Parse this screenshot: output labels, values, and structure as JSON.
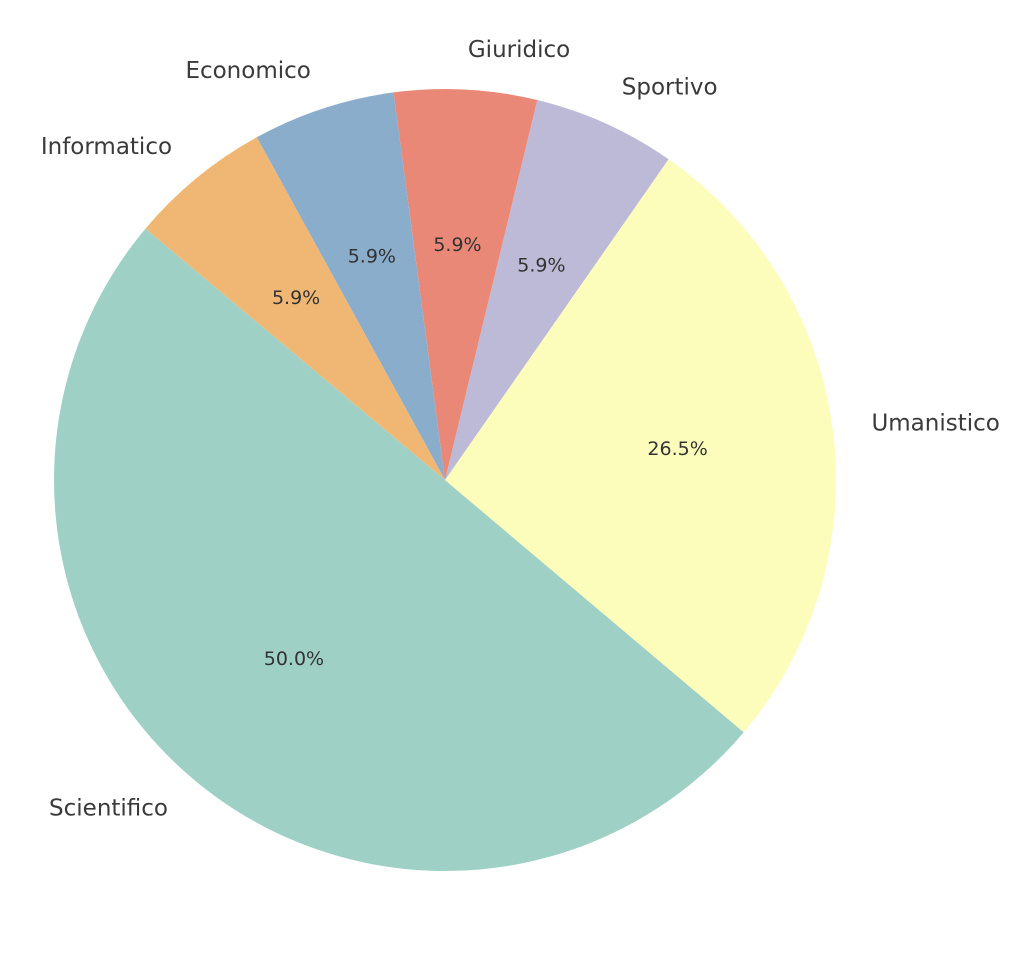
{
  "chart_data": {
    "type": "pie",
    "categories": [
      "Scientifico",
      "Umanistico",
      "Sportivo",
      "Giuridico",
      "Economico",
      "Informatico"
    ],
    "values": [
      50.0,
      26.5,
      5.9,
      5.9,
      5.9,
      5.9
    ],
    "value_labels": [
      "50.0%",
      "26.5%",
      "5.9%",
      "5.9%",
      "5.9%",
      "5.9%"
    ],
    "colors": [
      "#9fd0c6",
      "#fdfdbb",
      "#bdbad7",
      "#e98877",
      "#8badcc",
      "#f0b774"
    ],
    "start_angle": 140
  }
}
